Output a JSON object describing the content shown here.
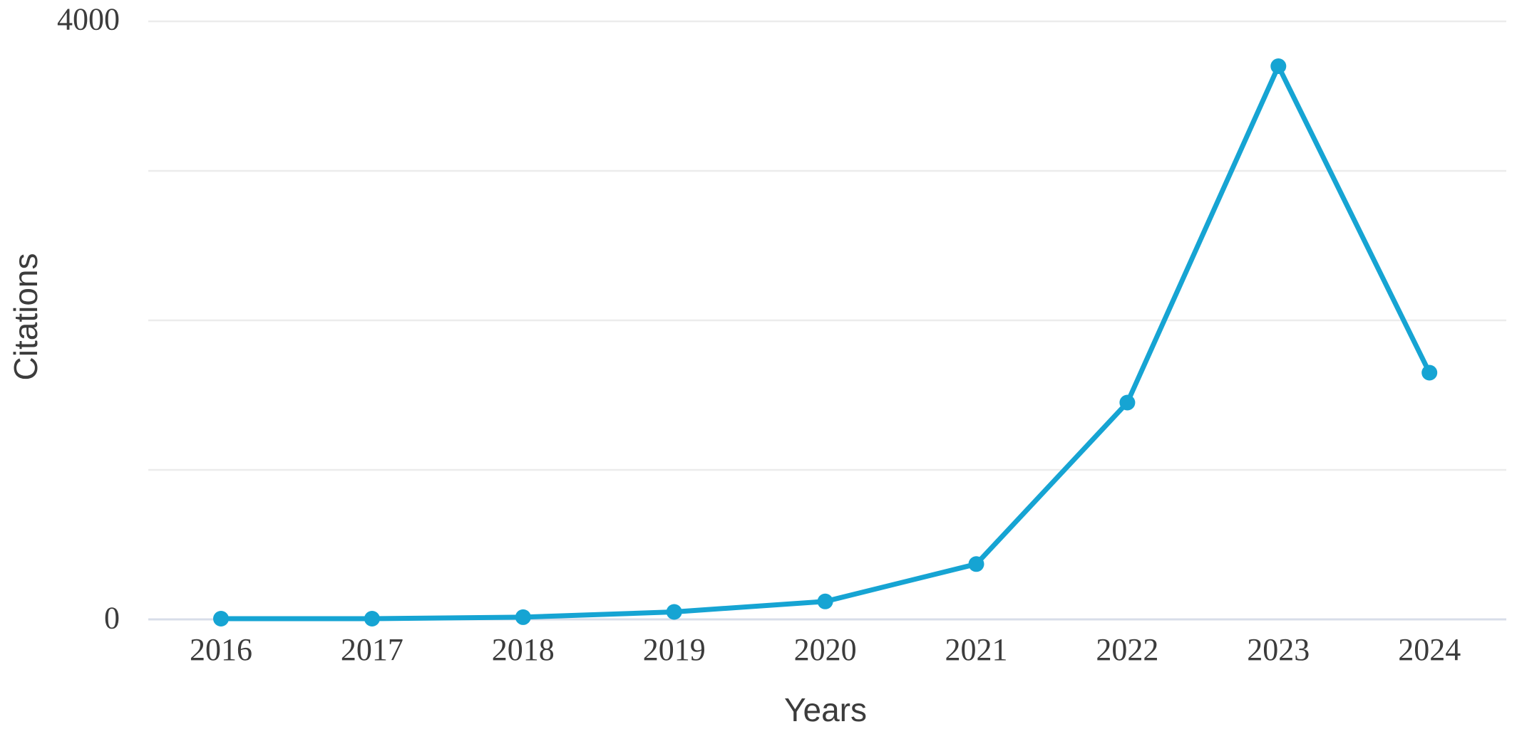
{
  "chart_data": {
    "type": "line",
    "title": "",
    "xlabel": "Years",
    "ylabel": "Citations",
    "categories": [
      "2016",
      "2017",
      "2018",
      "2019",
      "2020",
      "2021",
      "2022",
      "2023",
      "2024"
    ],
    "series": [
      {
        "name": "Citations",
        "values": [
          5,
          5,
          15,
          50,
          120,
          370,
          1450,
          3700,
          1650
        ]
      }
    ],
    "ylim": [
      0,
      4000
    ],
    "y_gridline_step": 1000,
    "y_tick_labels_visible": [
      "0",
      "4000"
    ],
    "grid": true,
    "legend": "none",
    "line_color": "#16a4d3",
    "marker_color": "#16a4d3",
    "gridline_color": "#ececec",
    "baseline_color": "#d8dde9",
    "text_color": "#3c3c3c"
  }
}
